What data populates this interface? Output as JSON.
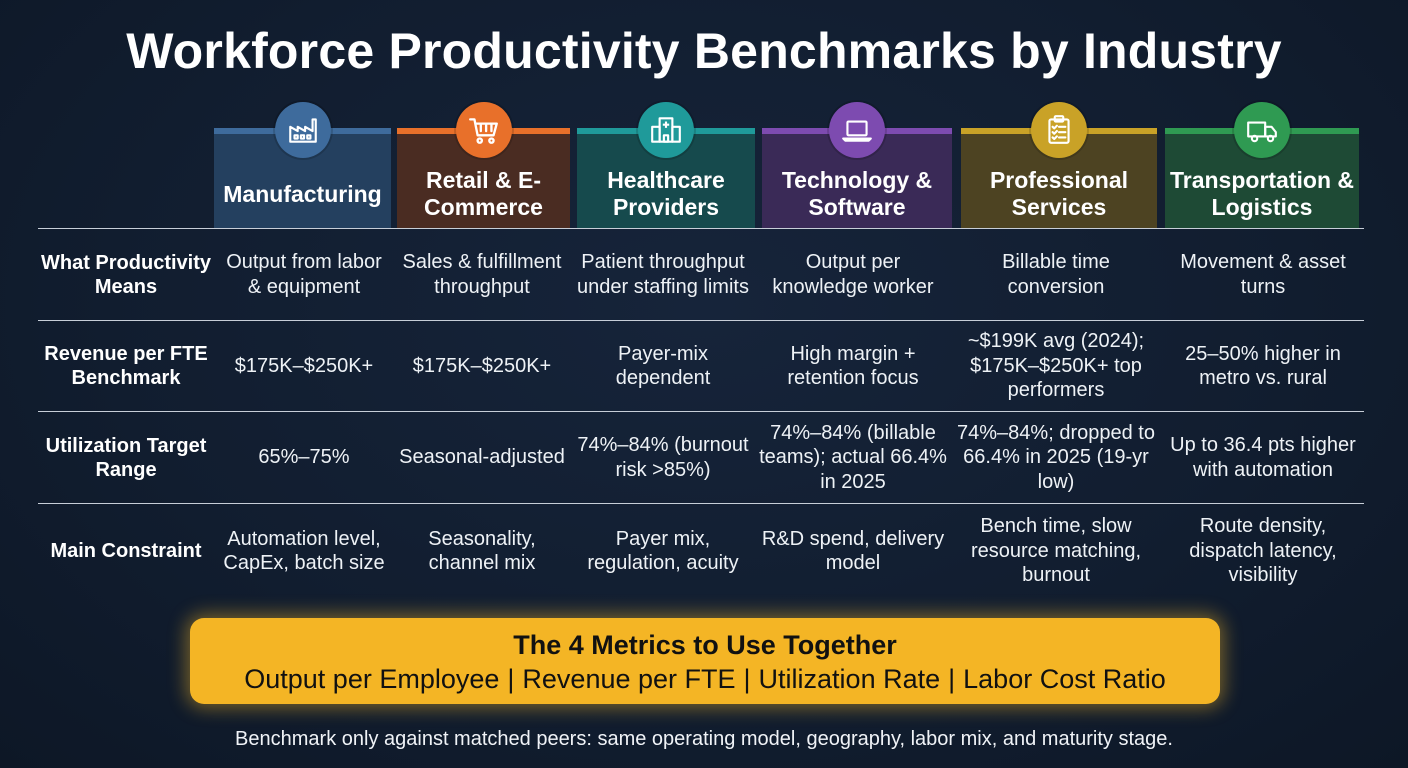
{
  "title": "Workforce Productivity Benchmarks by Industry",
  "industries": [
    {
      "name": "Manufacturing",
      "icon": "factory-icon",
      "color": "#3e6b9c"
    },
    {
      "name": "Retail & E-Commerce",
      "icon": "shopping-cart-icon",
      "color": "#e8702a"
    },
    {
      "name": "Healthcare Providers",
      "icon": "hospital-icon",
      "color": "#1f9a9a"
    },
    {
      "name": "Technology & Software",
      "icon": "laptop-icon",
      "color": "#7d4bb0"
    },
    {
      "name": "Professional Services",
      "icon": "clipboard-icon",
      "color": "#c9a227"
    },
    {
      "name": "Transportation & Logistics",
      "icon": "truck-icon",
      "color": "#2f9a52"
    }
  ],
  "rows": [
    {
      "label": "What Productivity Means",
      "cells": [
        "Output from labor & equipment",
        "Sales & fulfillment throughput",
        "Patient throughput under staffing limits",
        "Output per knowledge worker",
        "Billable time conversion",
        "Movement & asset turns"
      ]
    },
    {
      "label": "Revenue per FTE Benchmark",
      "cells": [
        "$175K–$250K+",
        "$175K–$250K+",
        "Payer-mix dependent",
        "High margin + retention focus",
        "~$199K avg (2024); $175K–$250K+ top performers",
        "25–50% higher in metro vs. rural"
      ]
    },
    {
      "label": "Utilization Target Range",
      "cells": [
        "65%–75%",
        "Seasonal-adjusted",
        "74%–84% (burnout risk >85%)",
        "74%–84% (billable teams); actual 66.4% in 2025",
        "74%–84%; dropped to 66.4% in 2025 (19-yr low)",
        "Up to 36.4 pts higher with automation"
      ]
    },
    {
      "label": "Main Constraint",
      "cells": [
        "Automation level, CapEx, batch size",
        "Seasonality, channel mix",
        "Payer mix, regulation, acuity",
        "R&D spend, delivery model",
        "Bench time, slow resource matching, burnout",
        "Route density, dispatch latency, visibility"
      ]
    }
  ],
  "metrics_box": {
    "title": "The 4 Metrics to Use Together",
    "items": [
      "Output per Employee",
      "Revenue per FTE",
      "Utilization Rate",
      "Labor Cost Ratio"
    ],
    "separator": "|"
  },
  "footnote": "Benchmark only against matched peers: same operating model, geography, labor mix, and maturity stage."
}
